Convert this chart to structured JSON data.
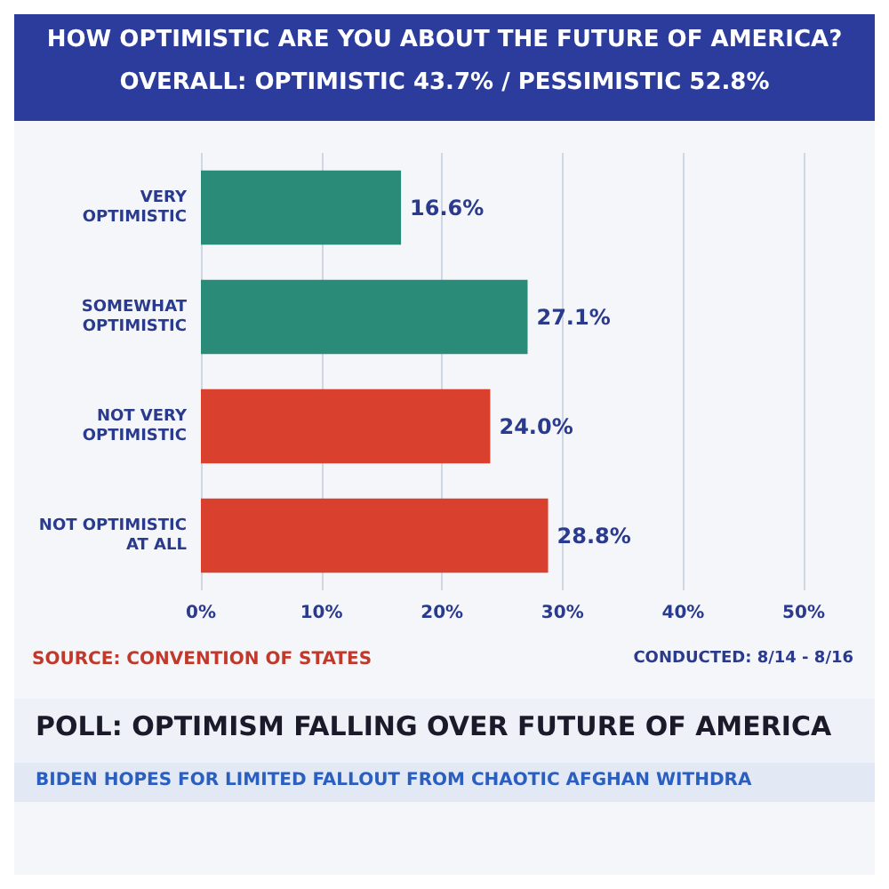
{
  "chart_data": {
    "type": "bar",
    "orientation": "horizontal",
    "title": "HOW OPTIMISTIC ARE YOU ABOUT THE FUTURE OF AMERICA?",
    "subtitle": "OVERALL: OPTIMISTIC 43.7% / PESSIMISTIC 52.8%",
    "categories": [
      "VERY\nOPTIMISTIC",
      "SOMEWHAT\nOPTIMISTIC",
      "NOT VERY\nOPTIMISTIC",
      "NOT OPTIMISTIC\nAT ALL"
    ],
    "values": [
      16.6,
      27.1,
      24.0,
      28.8
    ],
    "colors": [
      "#2a8c78",
      "#2a8c78",
      "#d9412e",
      "#d9412e"
    ],
    "value_labels": [
      "16.6%",
      "27.1%",
      "24.0%",
      "28.8%"
    ],
    "xlim": [
      0,
      50
    ],
    "xticks": [
      {
        "value": 0,
        "label": "0%"
      },
      {
        "value": 10,
        "label": "10%"
      },
      {
        "value": 20,
        "label": "20%"
      },
      {
        "value": 30,
        "label": "30%"
      },
      {
        "value": 40,
        "label": "40%"
      },
      {
        "value": 50,
        "label": "50%"
      }
    ],
    "grid": "x",
    "annotations": [
      "SOURCE: CONVENTION OF STATES",
      "CONDUCTED: 8/14 - 8/16",
      "POLL: OPTIMISM FALLING OVER FUTURE OF AMERICA",
      "BIDEN HOPES FOR LIMITED FALLOUT FROM CHAOTIC AFGHAN WITHDRA"
    ]
  }
}
